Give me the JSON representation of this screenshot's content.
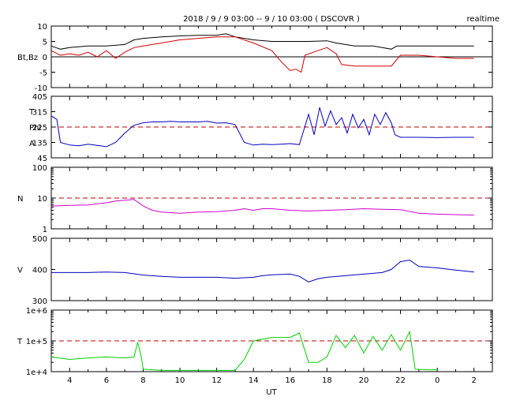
{
  "title": "2018 / 9 / 9   03:00 --  9 / 10  03:00 ( DSCOVR )",
  "realtime_label": "realtime",
  "chart_data": {
    "type": "line",
    "xlabel": "UT",
    "x_ticks": [
      "4",
      "6",
      "8",
      "10",
      "12",
      "14",
      "16",
      "18",
      "20",
      "22",
      "0",
      "2"
    ],
    "x_tick_hours": [
      4,
      6,
      8,
      10,
      12,
      14,
      16,
      18,
      20,
      22,
      24,
      26
    ],
    "xlim_hours": [
      3,
      27
    ],
    "panels": [
      {
        "id": "bfield",
        "ylabels": [
          "Bt,Bz"
        ],
        "scale": "linear",
        "ylim": [
          -10,
          10
        ],
        "yticks": [
          -10,
          -5,
          0,
          5,
          10
        ],
        "ytick_labels": [
          "-10",
          "-5",
          "0",
          "5",
          "10"
        ],
        "zero_line": 0,
        "series": [
          {
            "name": "Bt",
            "color": "#000000",
            "points": [
              [
                3.0,
                3.5
              ],
              [
                3.5,
                2.5
              ],
              [
                4.0,
                3.0
              ],
              [
                5.0,
                3.5
              ],
              [
                6.0,
                3.5
              ],
              [
                7.0,
                4.0
              ],
              [
                7.5,
                5.5
              ],
              [
                8.0,
                6.0
              ],
              [
                9.0,
                6.5
              ],
              [
                10.0,
                6.8
              ],
              [
                11.0,
                7.0
              ],
              [
                12.0,
                7.0
              ],
              [
                12.5,
                7.5
              ],
              [
                13.0,
                6.5
              ],
              [
                13.5,
                6.0
              ],
              [
                14.0,
                5.5
              ],
              [
                15.0,
                5.0
              ],
              [
                16.0,
                5.0
              ],
              [
                17.0,
                5.0
              ],
              [
                18.0,
                5.2
              ],
              [
                18.5,
                4.5
              ],
              [
                19.0,
                4.0
              ],
              [
                19.5,
                3.5
              ],
              [
                20.0,
                3.5
              ],
              [
                20.5,
                3.5
              ],
              [
                21.0,
                3.0
              ],
              [
                21.5,
                2.5
              ],
              [
                21.8,
                3.5
              ],
              [
                22.0,
                3.5
              ],
              [
                23.0,
                3.5
              ],
              [
                24.0,
                3.5
              ],
              [
                25.0,
                3.5
              ],
              [
                26.0,
                3.5
              ]
            ]
          },
          {
            "name": "Bz",
            "color": "#d00000",
            "points": [
              [
                3.0,
                2.0
              ],
              [
                3.5,
                0.5
              ],
              [
                4.0,
                1.0
              ],
              [
                4.5,
                0.5
              ],
              [
                5.0,
                1.5
              ],
              [
                5.5,
                0.0
              ],
              [
                6.0,
                2.0
              ],
              [
                6.5,
                -0.5
              ],
              [
                7.0,
                1.5
              ],
              [
                7.5,
                3.0
              ],
              [
                8.0,
                3.5
              ],
              [
                9.0,
                4.5
              ],
              [
                10.0,
                5.5
              ],
              [
                11.0,
                6.0
              ],
              [
                12.0,
                6.5
              ],
              [
                13.0,
                6.5
              ],
              [
                14.0,
                4.5
              ],
              [
                15.0,
                2.0
              ],
              [
                15.5,
                -1.5
              ],
              [
                16.0,
                -4.5
              ],
              [
                16.3,
                -4.0
              ],
              [
                16.6,
                -5.0
              ],
              [
                16.8,
                0.5
              ],
              [
                17.5,
                2.0
              ],
              [
                18.0,
                3.0
              ],
              [
                18.5,
                1.0
              ],
              [
                18.8,
                -2.5
              ],
              [
                19.5,
                -3.0
              ],
              [
                20.5,
                -3.0
              ],
              [
                21.5,
                -3.0
              ],
              [
                22.0,
                0.5
              ],
              [
                23.0,
                0.5
              ],
              [
                24.0,
                0.0
              ],
              [
                25.0,
                -0.5
              ],
              [
                26.0,
                -0.5
              ]
            ]
          }
        ]
      },
      {
        "id": "phi",
        "ylabels": [
          "T",
          "Phi",
          "A"
        ],
        "scale": "linear",
        "ylim": [
          45,
          405
        ],
        "yticks": [
          45,
          135,
          225,
          315,
          405
        ],
        "ytick_labels": [
          "45",
          "135",
          "225",
          "315",
          "405"
        ],
        "ref_line": 225,
        "series": [
          {
            "name": "Phi",
            "color": "#0000c0",
            "points": [
              [
                3.0,
                290
              ],
              [
                3.3,
                270
              ],
              [
                3.5,
                135
              ],
              [
                4.0,
                120
              ],
              [
                4.5,
                115
              ],
              [
                5.0,
                125
              ],
              [
                5.5,
                118
              ],
              [
                6.0,
                110
              ],
              [
                6.5,
                135
              ],
              [
                7.0,
                190
              ],
              [
                7.5,
                235
              ],
              [
                8.0,
                250
              ],
              [
                8.5,
                255
              ],
              [
                9.0,
                255
              ],
              [
                9.5,
                258
              ],
              [
                10.0,
                255
              ],
              [
                10.5,
                255
              ],
              [
                11.0,
                255
              ],
              [
                11.5,
                258
              ],
              [
                12.0,
                248
              ],
              [
                12.5,
                250
              ],
              [
                13.0,
                240
              ],
              [
                13.5,
                135
              ],
              [
                14.0,
                120
              ],
              [
                14.5,
                125
              ],
              [
                15.0,
                122
              ],
              [
                15.5,
                125
              ],
              [
                16.0,
                128
              ],
              [
                16.5,
                122
              ],
              [
                17.0,
                300
              ],
              [
                17.3,
                180
              ],
              [
                17.6,
                340
              ],
              [
                17.9,
                230
              ],
              [
                18.2,
                320
              ],
              [
                18.5,
                240
              ],
              [
                18.8,
                280
              ],
              [
                19.1,
                190
              ],
              [
                19.4,
                300
              ],
              [
                19.7,
                220
              ],
              [
                20.0,
                270
              ],
              [
                20.3,
                180
              ],
              [
                20.6,
                300
              ],
              [
                20.9,
                240
              ],
              [
                21.2,
                310
              ],
              [
                21.5,
                250
              ],
              [
                21.7,
                180
              ],
              [
                22.0,
                165
              ],
              [
                23.0,
                165
              ],
              [
                24.0,
                163
              ],
              [
                25.0,
                165
              ],
              [
                26.0,
                165
              ]
            ]
          }
        ]
      },
      {
        "id": "density",
        "ylabels": [
          "N"
        ],
        "scale": "log",
        "ylim": [
          1,
          100
        ],
        "yticks": [
          1,
          10,
          100
        ],
        "ytick_labels": [
          "1",
          "10",
          "100"
        ],
        "ref_line": 10,
        "series": [
          {
            "name": "N",
            "color": "#d000d0",
            "points": [
              [
                3.0,
                5.5
              ],
              [
                4.0,
                5.8
              ],
              [
                5.0,
                6.0
              ],
              [
                6.0,
                7.0
              ],
              [
                6.5,
                8.0
              ],
              [
                7.0,
                8.5
              ],
              [
                7.5,
                9.0
              ],
              [
                8.0,
                5.5
              ],
              [
                8.5,
                4.0
              ],
              [
                9.0,
                3.5
              ],
              [
                10.0,
                3.2
              ],
              [
                11.0,
                3.5
              ],
              [
                12.0,
                3.6
              ],
              [
                13.0,
                4.0
              ],
              [
                13.5,
                4.5
              ],
              [
                14.0,
                4.0
              ],
              [
                14.5,
                4.5
              ],
              [
                15.0,
                4.5
              ],
              [
                16.0,
                4.0
              ],
              [
                17.0,
                3.8
              ],
              [
                18.0,
                4.0
              ],
              [
                19.0,
                4.2
              ],
              [
                20.0,
                4.5
              ],
              [
                21.0,
                4.3
              ],
              [
                22.0,
                4.2
              ],
              [
                23.0,
                3.2
              ],
              [
                24.0,
                3.0
              ],
              [
                25.0,
                2.9
              ],
              [
                26.0,
                2.8
              ]
            ]
          }
        ]
      },
      {
        "id": "speed",
        "ylabels": [
          "V"
        ],
        "scale": "linear",
        "ylim": [
          300,
          500
        ],
        "yticks": [
          300,
          400,
          500
        ],
        "ytick_labels": [
          "300",
          "400",
          "500"
        ],
        "series": [
          {
            "name": "V",
            "color": "#0000c0",
            "points": [
              [
                3.0,
                390
              ],
              [
                4.0,
                390
              ],
              [
                5.0,
                390
              ],
              [
                6.0,
                392
              ],
              [
                7.0,
                390
              ],
              [
                8.0,
                382
              ],
              [
                9.0,
                378
              ],
              [
                10.0,
                375
              ],
              [
                11.0,
                375
              ],
              [
                12.0,
                375
              ],
              [
                13.0,
                372
              ],
              [
                14.0,
                375
              ],
              [
                14.5,
                380
              ],
              [
                15.0,
                383
              ],
              [
                16.0,
                385
              ],
              [
                16.5,
                378
              ],
              [
                17.0,
                360
              ],
              [
                17.5,
                370
              ],
              [
                18.0,
                375
              ],
              [
                19.0,
                380
              ],
              [
                20.0,
                385
              ],
              [
                21.0,
                390
              ],
              [
                21.5,
                400
              ],
              [
                22.0,
                425
              ],
              [
                22.5,
                430
              ],
              [
                23.0,
                410
              ],
              [
                24.0,
                405
              ],
              [
                25.0,
                398
              ],
              [
                26.0,
                392
              ]
            ]
          }
        ]
      },
      {
        "id": "temperature",
        "ylabels": [
          "T"
        ],
        "scale": "log",
        "ylim": [
          10000,
          1000000
        ],
        "yticks": [
          10000,
          100000,
          1000000
        ],
        "ytick_labels": [
          "1e+4",
          "1e+5",
          "1e+6"
        ],
        "ref_line": 100000,
        "series": [
          {
            "name": "T",
            "color": "#00d000",
            "points": [
              [
                3.0,
                30000
              ],
              [
                4.0,
                25000
              ],
              [
                5.0,
                28000
              ],
              [
                6.0,
                30000
              ],
              [
                7.0,
                28000
              ],
              [
                7.5,
                30000
              ],
              [
                7.7,
                90000
              ],
              [
                7.9,
                30000
              ],
              [
                8.0,
                12000
              ],
              [
                9.0,
                11000
              ],
              [
                10.0,
                11000
              ],
              [
                11.0,
                11000
              ],
              [
                12.0,
                11000
              ],
              [
                13.0,
                11000
              ],
              [
                13.5,
                25000
              ],
              [
                14.0,
                100000
              ],
              [
                15.0,
                130000
              ],
              [
                16.0,
                130000
              ],
              [
                16.5,
                180000
              ],
              [
                17.0,
                20000
              ],
              [
                17.5,
                20000
              ],
              [
                18.0,
                30000
              ],
              [
                18.5,
                150000
              ],
              [
                19.0,
                60000
              ],
              [
                19.5,
                150000
              ],
              [
                20.0,
                40000
              ],
              [
                20.5,
                140000
              ],
              [
                21.0,
                50000
              ],
              [
                21.5,
                160000
              ],
              [
                22.0,
                50000
              ],
              [
                22.5,
                200000
              ],
              [
                22.8,
                12000
              ],
              [
                23.5,
                11500
              ],
              [
                24.0,
                11500
              ]
            ]
          }
        ]
      }
    ]
  }
}
